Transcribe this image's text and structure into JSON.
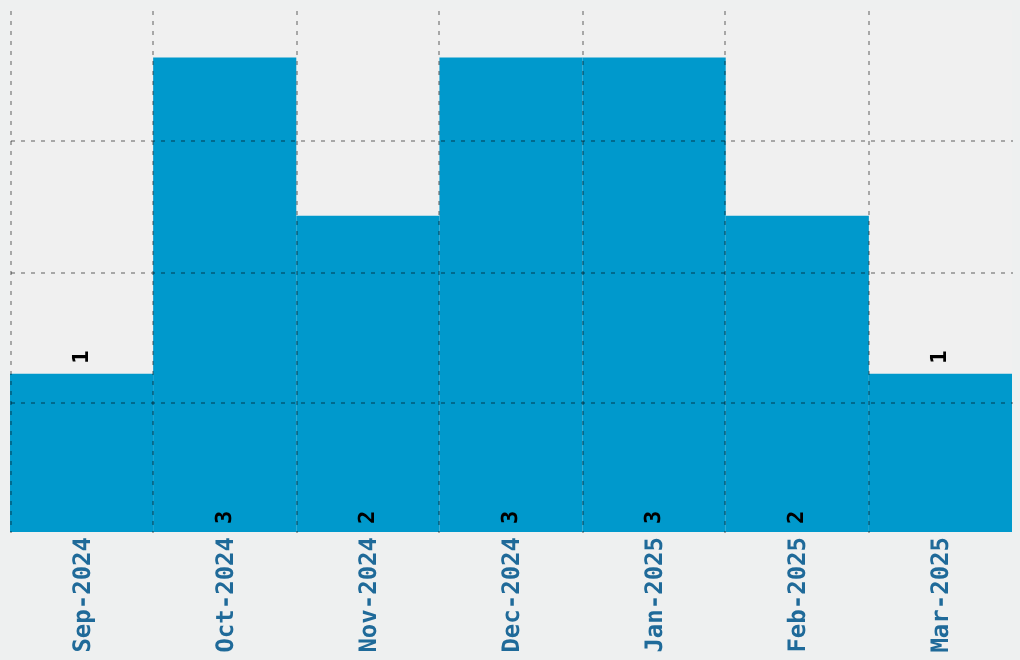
{
  "chart_data": {
    "type": "bar",
    "categories": [
      "Sep-2024",
      "Oct-2024",
      "Nov-2024",
      "Dec-2024",
      "Jan-2025",
      "Feb-2025",
      "Mar-2025"
    ],
    "values": [
      1,
      3,
      2,
      3,
      3,
      2,
      1
    ],
    "color": "#0099cc",
    "ylim": [
      0,
      3.3
    ],
    "yticks": [
      {
        "value": 0.825,
        "label": null
      },
      {
        "value": 1.65,
        "label": null
      },
      {
        "value": 2.475,
        "label": null
      }
    ],
    "grid": true,
    "tick_labels": "x",
    "data_labels": true
  }
}
